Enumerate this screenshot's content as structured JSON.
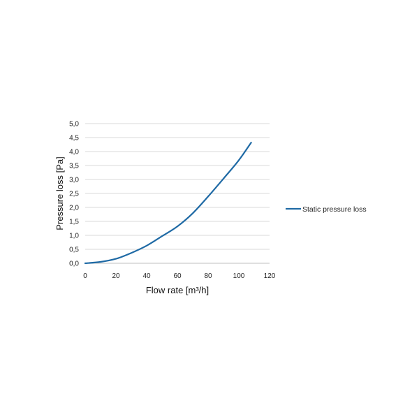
{
  "chart_data": {
    "type": "line",
    "xlabel": "Flow rate [m³/h]",
    "ylabel": "Pressure loss [Pa]",
    "xlim": [
      0,
      120
    ],
    "ylim": [
      0,
      5
    ],
    "x_ticks": [
      "0",
      "20",
      "40",
      "60",
      "80",
      "100",
      "120"
    ],
    "y_ticks": [
      "0,0",
      "0,5",
      "1,0",
      "1,5",
      "2,0",
      "2,5",
      "3,0",
      "3,5",
      "4,0",
      "4,5",
      "5,0"
    ],
    "grid": "horizontal",
    "legend_position": "right",
    "series": [
      {
        "name": "Static pressure loss",
        "color": "#1f6aa5",
        "x": [
          0,
          10,
          20,
          30,
          40,
          50,
          60,
          70,
          80,
          90,
          100,
          108
        ],
        "y": [
          0.0,
          0.05,
          0.16,
          0.37,
          0.63,
          0.97,
          1.32,
          1.79,
          2.39,
          3.03,
          3.69,
          4.32
        ]
      }
    ]
  }
}
